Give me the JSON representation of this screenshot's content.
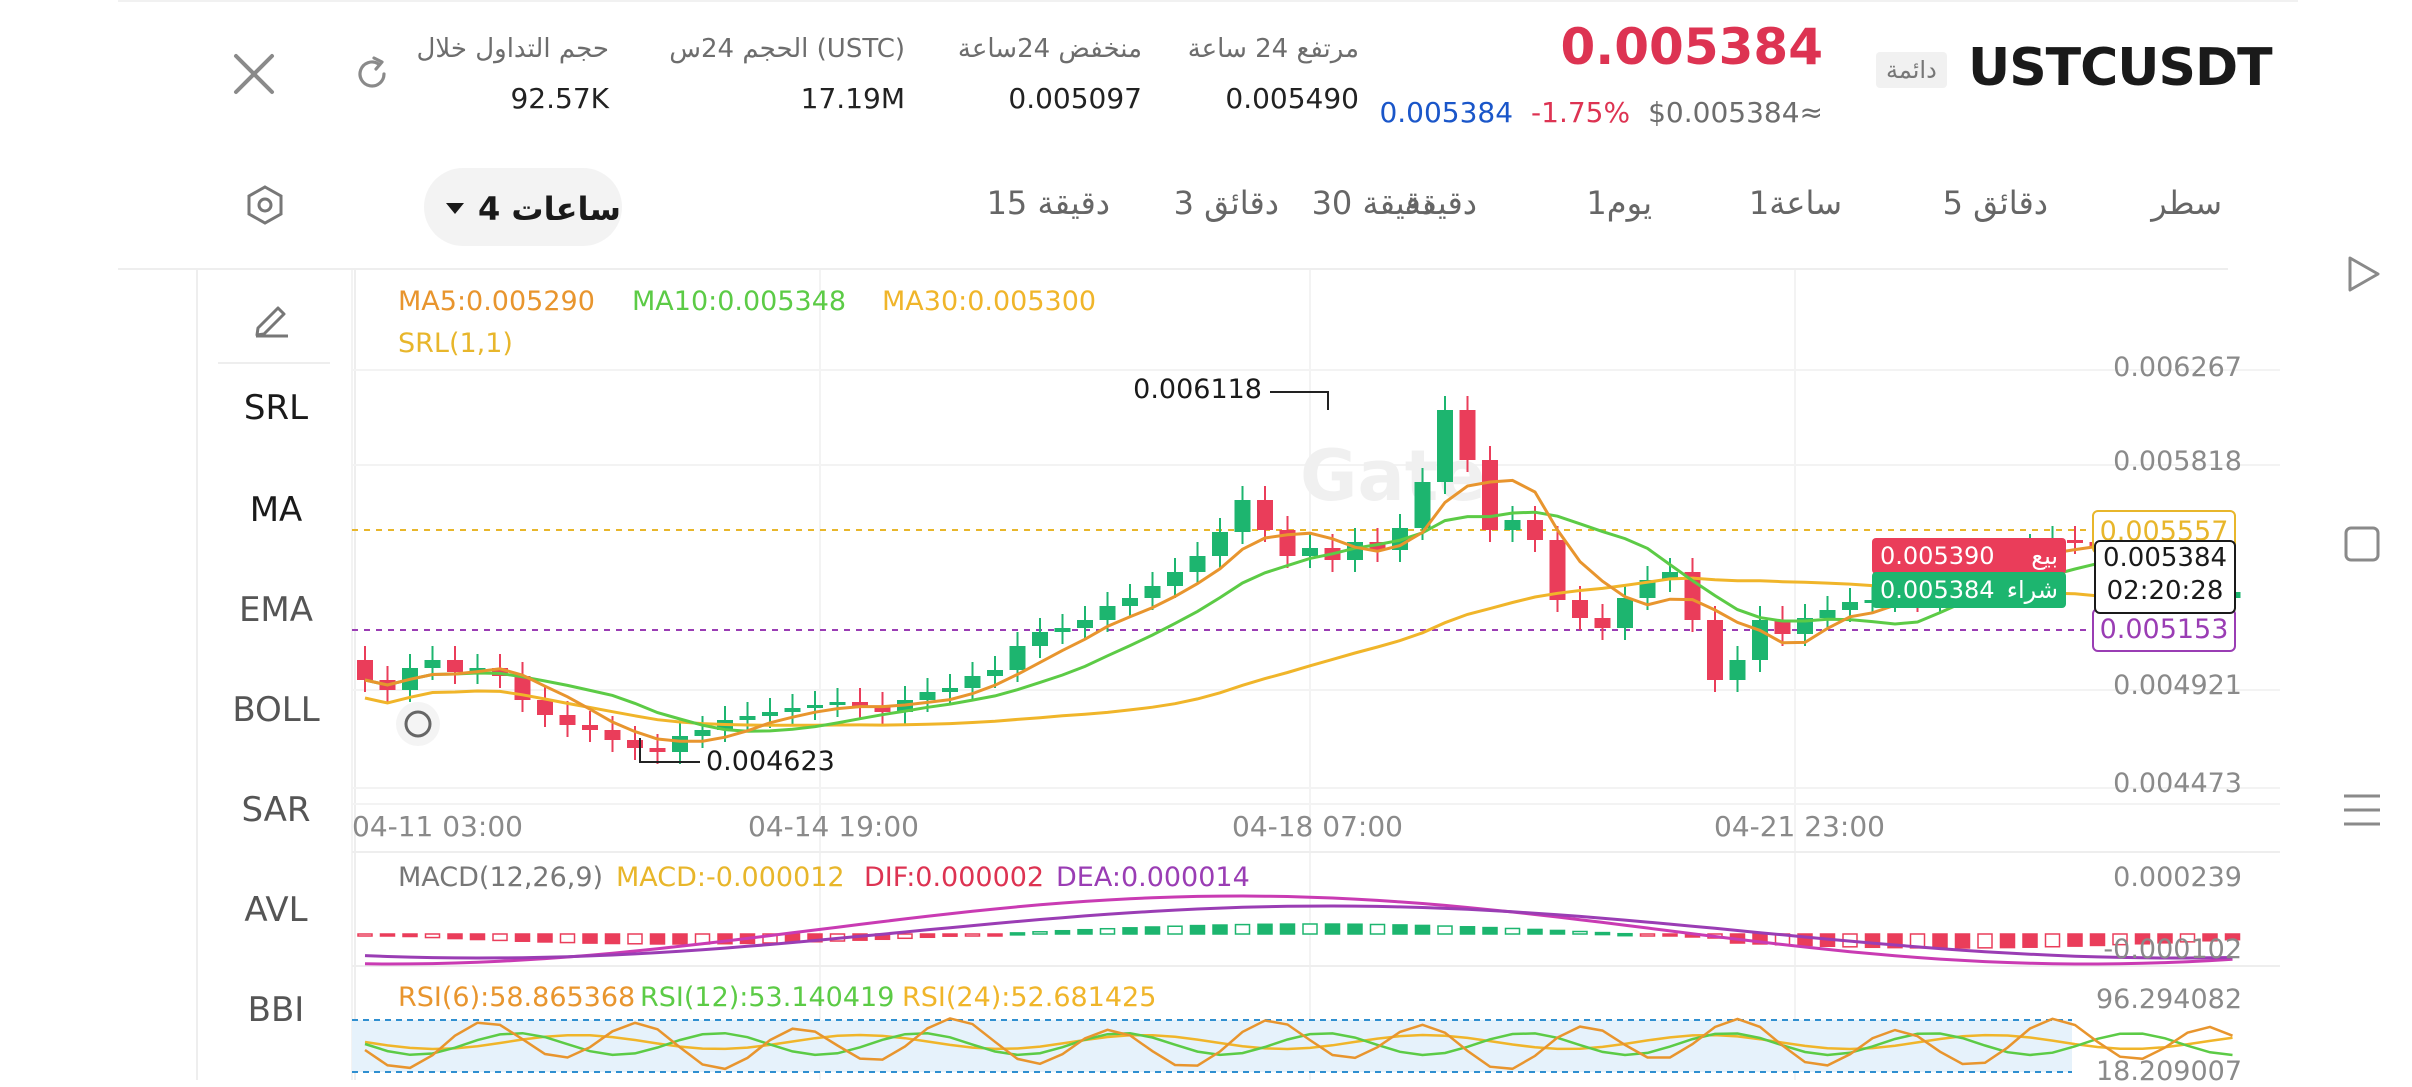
{
  "header": {
    "symbol": "USTCUSDT",
    "badge": "دائمة",
    "last_price": "0.005384",
    "usd_price": "≈$0.005384",
    "change_pct": "-1.75%",
    "mark_price": "0.005384",
    "stats": [
      {
        "label": "مرتفع 24 ساعة",
        "value": "0.005490"
      },
      {
        "label": "منخفض 24ساعة",
        "value": "0.005097"
      },
      {
        "label": "الحجم 24س (USTC)",
        "value": "17.19M"
      },
      {
        "label": "حجم التداول خلال",
        "value": "92.57K"
      }
    ],
    "colors": {
      "down": "#dd3352",
      "up": "#1db56f",
      "mark": "#1a56c9"
    }
  },
  "tabs": {
    "items": [
      {
        "label": "سطر"
      },
      {
        "label": "5 دقائق"
      },
      {
        "label": "1ساعة"
      },
      {
        "label": "1يوم"
      },
      {
        "label": "دقيقة"
      },
      {
        "label": "3 دقائق"
      },
      {
        "label": "15 دقيقة"
      },
      {
        "label": "30 دقيقة"
      }
    ],
    "active": "4 ساعات"
  },
  "tools": {
    "items": [
      "SRL",
      "MA",
      "EMA",
      "BOLL",
      "SAR",
      "AVL",
      "BBI"
    ]
  },
  "chart": {
    "legend_ma5": "MA5:0.005290",
    "legend_ma10": "MA10:0.005348",
    "legend_ma30": "MA30:0.005300",
    "legend_srl": "SRL(1,1)",
    "y_ticks": [
      "0.006267",
      "0.005818",
      "0.004921",
      "0.004473"
    ],
    "x_ticks": [
      "04-11 03:00",
      "04-14 19:00",
      "04-18 07:00",
      "04-21 23:00"
    ],
    "high_marker": "0.006118",
    "low_marker": "0.004623",
    "level_high": "0.005557",
    "level_low": "0.005153",
    "sell_price": "0.005390",
    "sell_label": "بيع",
    "buy_price": "0.005384",
    "buy_label": "شراء",
    "last_price_tag": "0.005384",
    "countdown": "02:20:28",
    "colors": {
      "ma5": "#e8952e",
      "ma10": "#5ccb46",
      "ma30": "#f0b52a",
      "srl": "#e8b62b",
      "srl_low": "#9a3db4"
    }
  },
  "macd": {
    "legend_title": "MACD(12,26,9)",
    "legend_macd": "MACD:-0.000012",
    "legend_dif": "DIF:0.000002",
    "legend_dea": "DEA:0.000014",
    "y_ticks": [
      "0.000239",
      "-0.000102"
    ]
  },
  "rsi": {
    "legend_6": "RSI(6):58.865368",
    "legend_12": "RSI(12):53.140419",
    "legend_24": "RSI(24):52.681425",
    "y_ticks": [
      "96.294082",
      "18.209007"
    ]
  },
  "icons": {
    "close": "close-icon",
    "refresh": "refresh-icon",
    "settings": "settings-icon",
    "pencil": "pencil-icon",
    "play": "play-icon",
    "square": "square-icon",
    "menu": "menu-icon"
  }
}
